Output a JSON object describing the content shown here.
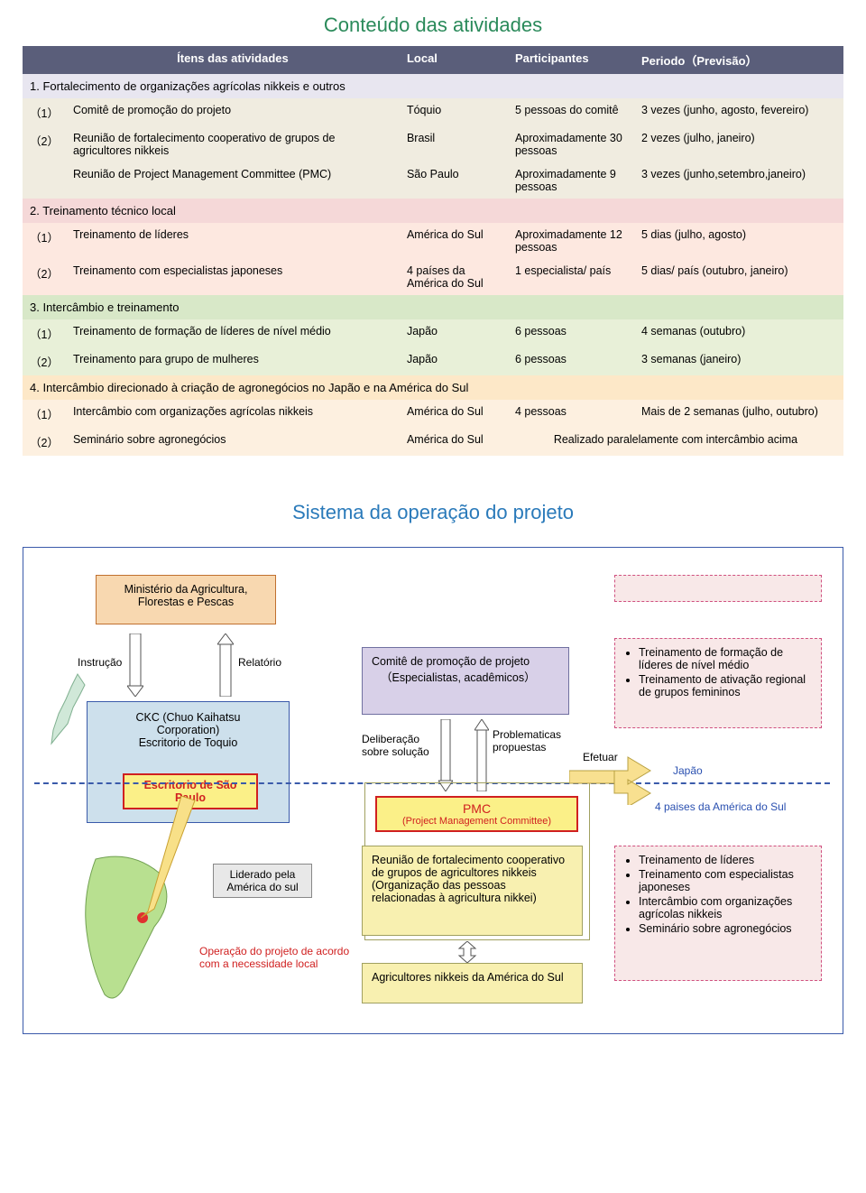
{
  "title1": "Conteúdo das atividades",
  "headers": {
    "c1": "Ítens das atividades",
    "c2": "Local",
    "c3": "Participantes",
    "c4": "Periodo（Previsão）"
  },
  "sections": [
    {
      "bgA": "sec1a",
      "bgB": "sec1b",
      "title": "1. Fortalecimento de organizações agrícolas nikkeis e outros",
      "rows": [
        {
          "n": "（1）",
          "item": "Comitê de promoção do projeto",
          "local": "Tóquio",
          "part": "5 pessoas do comitê",
          "per": "3 vezes (junho, agosto, fevereiro)"
        },
        {
          "n": "（2）",
          "item": "Reunião de fortalecimento cooperativo de grupos de agricultores nikkeis",
          "local": "Brasil",
          "part": "Aproximadamente 30 pessoas",
          "per": "2 vezes (julho, janeiro)"
        },
        {
          "n": "",
          "item": "Reunião de Project Management Committee (PMC)",
          "local": "São Paulo",
          "part": "Aproximadamente 9 pessoas",
          "per": "3 vezes (junho,setembro,janeiro)"
        }
      ]
    },
    {
      "bgA": "sec2a",
      "bgB": "sec2b",
      "title": "2. Treinamento técnico local",
      "rows": [
        {
          "n": "（1）",
          "item": "Treinamento de líderes",
          "local": "América do Sul",
          "part": "Aproximadamente 12 pessoas",
          "per": "5 dias (julho, agosto)"
        },
        {
          "n": "（2）",
          "item": "Treinamento com especialistas japoneses",
          "local": "4 países da América do Sul",
          "part": "1 especialista/ país",
          "per": "5 dias/ país (outubro, janeiro)"
        }
      ]
    },
    {
      "bgA": "sec3a",
      "bgB": "sec3b",
      "title": "3. Intercâmbio e treinamento",
      "rows": [
        {
          "n": "（1）",
          "item": "Treinamento de formação de líderes de nível médio",
          "local": "Japão",
          "part": "6 pessoas",
          "per": "4 semanas (outubro)"
        },
        {
          "n": "（2）",
          "item": "Treinamento para grupo de mulheres",
          "local": "Japão",
          "part": "6 pessoas",
          "per": "3 semanas (janeiro)"
        }
      ]
    },
    {
      "bgA": "sec4a",
      "bgB": "sec4b",
      "title": "4. Intercâmbio direcionado à criação de agronegócios no Japão e na América do Sul",
      "rows": [
        {
          "n": "（1）",
          "item": "Intercâmbio com organizações agrícolas nikkeis",
          "local": "América do Sul",
          "part": "4 pessoas",
          "per": "Mais de 2 semanas (julho, outubro)"
        },
        {
          "n": "（2）",
          "item": "Seminário sobre agronegócios",
          "local": "América do Sul",
          "part": "",
          "per": "Realizado paralelamente com intercâmbio acima",
          "span": true
        }
      ]
    }
  ],
  "title2": "Sistema da operação do projeto",
  "diagram": {
    "ministry": "Ministério da Agricultura, Florestas e Pescas",
    "instrucao": "Instrução",
    "relatorio": "Relatório",
    "ckc": "CKC (Chuo Kaihatsu Corporation)\nEscritório de Toquio",
    "sp": "Escritorio de São Paulo",
    "liderado": "Liderado pela América do sul",
    "operacao": "Operação do projeto de acordo com a necessidade local",
    "comite_t": "Comitê de promoção de projeto",
    "comite_s": "（Especialistas, acadêmicos）",
    "delib": "Deliberação sobre solução",
    "prob": "Problematicas propuestas",
    "efetuar": "Efetuar",
    "pmc_t": "PMC",
    "pmc_s": "(Project Management Committee)",
    "reuniao": "Reunião de fortalecimento cooperativo de grupos de agricultores nikkeis (Organização das pessoas relacionadas à agricultura nikkei)",
    "agr": "Agricultores nikkeis da América do Sul",
    "japao": "Japão",
    "paises4": "4 paises da América do Sul",
    "d2_items": [
      "Treinamento de formação de líderes de nível médio",
      "Treinamento de ativação regional de grupos femininos"
    ],
    "d3_items": [
      "Treinamento de líderes",
      "Treinamento com especialistas japoneses",
      "Intercâmbio com organizações agrícolas nikkeis",
      "Seminário sobre agronegócios"
    ]
  }
}
